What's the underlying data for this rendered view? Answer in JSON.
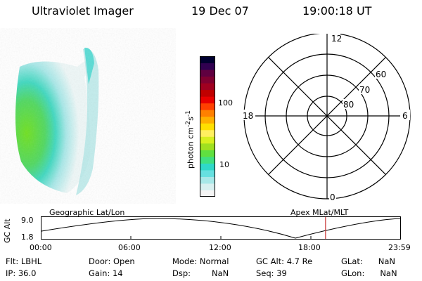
{
  "header": {
    "instrument": "Ultraviolet Imager",
    "date": "19 Dec 07",
    "time": "19:00:18 UT"
  },
  "colorbar": {
    "label": "photon cm",
    "exp1": "-2",
    "mid": "s",
    "exp2": "-1",
    "ticks": [
      "100",
      "10"
    ],
    "colors": [
      "#f5f5f5",
      "#d8f0f0",
      "#a8e8e8",
      "#66e0e0",
      "#30d8c8",
      "#40e080",
      "#60e040",
      "#a0e020",
      "#d8f020",
      "#fff060",
      "#ffe000",
      "#ffb000",
      "#ff8000",
      "#ff4000",
      "#e80000",
      "#c00000",
      "#a00020",
      "#800030",
      "#600040",
      "#300050",
      "#000030"
    ]
  },
  "polar": {
    "mlt_labels": [
      "12",
      "18",
      "6",
      "0"
    ],
    "lat_labels": [
      "60",
      "70",
      "80"
    ]
  },
  "timeline": {
    "y_axis_label": "GC Alt",
    "y_max": "9.0",
    "y_min": "1.8",
    "left_label": "Geographic Lat/Lon",
    "right_label": "Apex MLat/MLT",
    "ticks": [
      "00:00",
      "06:00",
      "12:00",
      "18:00",
      "23:59"
    ],
    "current_time_hours": 19.005
  },
  "info": {
    "flt_label": "Flt:",
    "flt_value": "LBHL",
    "ip_label": "IP:",
    "ip_value": "36.0",
    "door_label": "Door:",
    "door_value": "Open",
    "gain_label": "Gain:",
    "gain_value": "14",
    "mode_label": "Mode:",
    "mode_value": "Normal",
    "dsp_label": "Dsp:",
    "dsp_value": "NaN",
    "gcalt_label": "GC Alt:",
    "gcalt_value": "4.7 Re",
    "seq_label": "Seq:",
    "seq_value": "39",
    "glat_label": "GLat:",
    "glat_value": "NaN",
    "glon_label": "GLon:",
    "glon_value": "NaN"
  },
  "colors": {
    "accent_line": "#c83232"
  }
}
